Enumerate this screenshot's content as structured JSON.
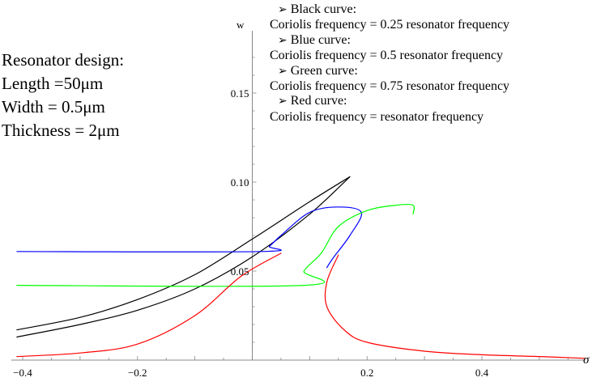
{
  "chart_data": {
    "type": "line",
    "title": "",
    "xlabel": "σ",
    "ylabel": "w",
    "xlim": [
      -0.42,
      0.58
    ],
    "ylim": [
      0,
      0.185
    ],
    "x_ticks": [
      {
        "value": -0.4,
        "label": "−0.4"
      },
      {
        "value": -0.2,
        "label": "−0.2"
      },
      {
        "value": 0.2,
        "label": "0.2"
      },
      {
        "value": 0.4,
        "label": "0.4"
      }
    ],
    "y_ticks": [
      {
        "value": 0.05,
        "label": "0.05"
      },
      {
        "value": 0.1,
        "label": "0.10"
      },
      {
        "value": 0.15,
        "label": "0.15"
      }
    ],
    "grid": false,
    "series": [
      {
        "color": "#000000",
        "segments": [
          [
            [
              -0.41,
              0.017
            ],
            [
              -0.3,
              0.024
            ],
            [
              -0.2,
              0.034
            ],
            [
              -0.1,
              0.048
            ],
            [
              0.0,
              0.068
            ],
            [
              0.1,
              0.089
            ],
            [
              0.17,
              0.103
            ]
          ],
          [
            [
              0.17,
              0.103
            ],
            [
              0.1,
              0.082
            ],
            [
              0.0,
              0.058
            ],
            [
              -0.1,
              0.04
            ],
            [
              -0.2,
              0.028
            ],
            [
              -0.3,
              0.02
            ],
            [
              -0.41,
              0.013
            ]
          ]
        ]
      },
      {
        "color": "#0000ff",
        "segments": [
          [
            [
              -0.41,
              0.061
            ],
            [
              0.015,
              0.061
            ],
            [
              0.03,
              0.064
            ],
            [
              0.05,
              0.07
            ],
            [
              0.1,
              0.083
            ],
            [
              0.15,
              0.086
            ],
            [
              0.19,
              0.083
            ],
            [
              0.17,
              0.07
            ],
            [
              0.14,
              0.057
            ],
            [
              0.13,
              0.052
            ]
          ]
        ]
      },
      {
        "color": "#00ff00",
        "segments": [
          [
            [
              -0.41,
              0.042
            ],
            [
              0.09,
              0.042
            ],
            [
              0.09,
              0.05
            ],
            [
              0.12,
              0.06
            ],
            [
              0.15,
              0.075
            ],
            [
              0.2,
              0.084
            ],
            [
              0.25,
              0.087
            ],
            [
              0.28,
              0.087
            ],
            [
              0.28,
              0.082
            ]
          ]
        ]
      },
      {
        "color": "#ff0000",
        "segments": [
          [
            [
              -0.41,
              0.002
            ],
            [
              -0.3,
              0.004
            ],
            [
              -0.2,
              0.009
            ],
            [
              -0.1,
              0.025
            ],
            [
              -0.02,
              0.047
            ],
            [
              0.05,
              0.06
            ]
          ],
          [
            [
              0.15,
              0.059
            ],
            [
              0.13,
              0.044
            ],
            [
              0.13,
              0.03
            ],
            [
              0.16,
              0.017
            ],
            [
              0.2,
              0.01
            ],
            [
              0.3,
              0.005
            ],
            [
              0.4,
              0.003
            ],
            [
              0.5,
              0.002
            ],
            [
              0.58,
              0.001
            ]
          ]
        ]
      }
    ]
  },
  "design_text": {
    "heading": "Resonator design:",
    "length": "Length =50μm",
    "width": "Width = 0.5μm",
    "thickness": "Thickness = 2μm"
  },
  "legend_text": {
    "arrow": "➢",
    "black_head": "Black curve:",
    "black_desc": "Coriolis frequency = 0.25 resonator frequency",
    "blue_head": "Blue curve:",
    "blue_desc": "Coriolis frequency = 0.5 resonator frequency",
    "green_head": "Green curve:",
    "green_desc": "Coriolis frequency = 0.75 resonator frequency",
    "red_head": "Red curve:",
    "red_desc": "Coriolis frequency = resonator frequency"
  }
}
